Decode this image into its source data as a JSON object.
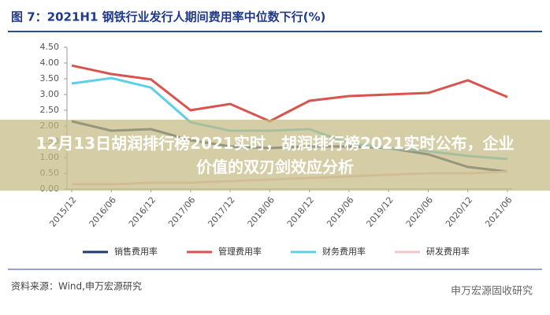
{
  "chart_data": {
    "type": "line",
    "title": "图 7：2021H1 钢铁行业发行人期间费用率中位数下行(%)",
    "categories": [
      "2015/12",
      "2016/06",
      "2016/12",
      "2017/06",
      "2017/12",
      "2018/06",
      "2018/12",
      "2019/06",
      "2019/12",
      "2020/06",
      "2020/12",
      "2021/06"
    ],
    "series": [
      {
        "name": "销售费用率",
        "color": "#1f3a6e",
        "values": [
          2.15,
          1.85,
          1.9,
          1.55,
          1.35,
          1.3,
          1.35,
          1.35,
          1.3,
          1.1,
          0.7,
          0.55
        ]
      },
      {
        "name": "管理费用率",
        "color": "#d9534f",
        "values": [
          3.92,
          3.65,
          3.48,
          2.5,
          2.7,
          2.15,
          2.8,
          2.95,
          3.0,
          3.05,
          3.45,
          2.92
        ]
      },
      {
        "name": "财务费用率",
        "color": "#5bd0e8",
        "values": [
          3.35,
          3.52,
          3.22,
          2.12,
          1.85,
          1.85,
          1.9,
          1.45,
          1.3,
          1.2,
          1.05,
          0.95
        ]
      },
      {
        "name": "研发费用率",
        "color": "#f4c6c6",
        "values": [
          0.15,
          0.15,
          0.2,
          0.2,
          0.25,
          0.3,
          0.35,
          0.4,
          0.45,
          0.5,
          0.5,
          0.55
        ]
      }
    ],
    "ylim": [
      0,
      4.5
    ],
    "yticks": [
      {
        "value": 0,
        "label": "0.00"
      },
      {
        "value": 0.5,
        "label": "0.50"
      },
      {
        "value": 1,
        "label": "1.00"
      },
      {
        "value": 1.5,
        "label": "1.50"
      },
      {
        "value": 2,
        "label": "2.00"
      },
      {
        "value": 2.5,
        "label": "2.50"
      },
      {
        "value": 3,
        "label": "3.00"
      },
      {
        "value": 3.5,
        "label": "3.50"
      },
      {
        "value": 4,
        "label": "4.00"
      },
      {
        "value": 4.5,
        "label": "4.50"
      }
    ],
    "source": "资料来源：Wind,申万宏源研究",
    "watermark": "申万宏源固收研究",
    "banner": "12月13日胡润排行榜2021实时，胡润排行榜2021实时公布，企业价值的双刃剑效应分析"
  }
}
